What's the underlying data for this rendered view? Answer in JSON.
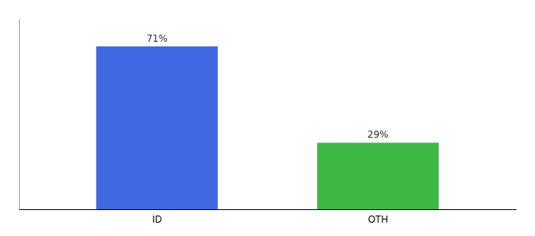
{
  "chart_data": {
    "type": "bar",
    "categories": [
      "ID",
      "OTH"
    ],
    "values": [
      71,
      29
    ],
    "colors": [
      "#4169e1",
      "#3cb843"
    ],
    "data_labels": true,
    "value_labels": [
      "71%",
      "29%"
    ],
    "ylim": [
      0,
      83
    ],
    "tick_labels": "x",
    "grid": false
  }
}
